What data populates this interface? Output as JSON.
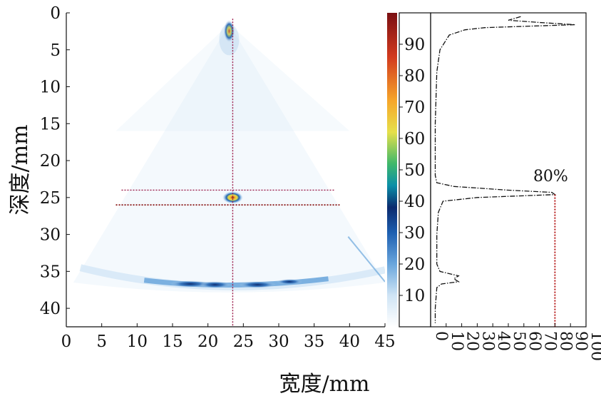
{
  "chart_data": [
    {
      "type": "heatmap",
      "xlabel": "宽度/mm",
      "ylabel": "深度/mm",
      "xlim": [
        0,
        45
      ],
      "ylim": [
        0,
        42.5
      ],
      "x_ticks": [
        "0",
        "5",
        "10",
        "15",
        "20",
        "25",
        "30",
        "35",
        "40",
        "45"
      ],
      "y_ticks": [
        "0",
        "5",
        "10",
        "15",
        "20",
        "25",
        "30",
        "35",
        "40"
      ],
      "colormap": [
        "#ffffff",
        "#cfe4f5",
        "#6aa6dc",
        "#1d5fb0",
        "#0b2a6e",
        "#0b8fa8",
        "#40b86a",
        "#e6e04a",
        "#f6a62a",
        "#d23a1e",
        "#7a0f12"
      ],
      "focal_point": {
        "x": 23.5,
        "y": 25,
        "intensity": 90
      },
      "array_apex": {
        "x": 23,
        "y": 1.5,
        "intensity": 65
      },
      "sector_arc_depth": 36.5,
      "marker_lines": {
        "vertical_x": 23.5,
        "horizontal_y": [
          24,
          26
        ]
      }
    },
    {
      "type": "colorbar",
      "min": 0,
      "max": 100,
      "ticks": [
        "10",
        "20",
        "30",
        "40",
        "50",
        "60",
        "70",
        "80",
        "90"
      ]
    },
    {
      "type": "line",
      "xlim": [
        0,
        100
      ],
      "x_ticks": [
        "0",
        "10",
        "20",
        "30",
        "40",
        "50",
        "60",
        "70",
        "80",
        "90",
        "100"
      ],
      "annotation": "80%",
      "annotation_value": 80,
      "profile": [
        {
          "d": 0.5,
          "v": 58
        },
        {
          "d": 1.0,
          "v": 50
        },
        {
          "d": 1.3,
          "v": 70
        },
        {
          "d": 1.6,
          "v": 93
        },
        {
          "d": 2.0,
          "v": 35
        },
        {
          "d": 2.3,
          "v": 22
        },
        {
          "d": 3.0,
          "v": 12
        },
        {
          "d": 5.0,
          "v": 6
        },
        {
          "d": 8.0,
          "v": 4
        },
        {
          "d": 15.0,
          "v": 3
        },
        {
          "d": 22.0,
          "v": 3
        },
        {
          "d": 23.0,
          "v": 4
        },
        {
          "d": 23.5,
          "v": 15
        },
        {
          "d": 24.0,
          "v": 50
        },
        {
          "d": 24.3,
          "v": 78
        },
        {
          "d": 24.6,
          "v": 80
        },
        {
          "d": 25.0,
          "v": 30
        },
        {
          "d": 25.5,
          "v": 8
        },
        {
          "d": 27.0,
          "v": 5
        },
        {
          "d": 30.0,
          "v": 4
        },
        {
          "d": 34.0,
          "v": 4
        },
        {
          "d": 35.0,
          "v": 6
        },
        {
          "d": 35.6,
          "v": 18
        },
        {
          "d": 36.0,
          "v": 15
        },
        {
          "d": 36.4,
          "v": 18
        },
        {
          "d": 36.7,
          "v": 7
        },
        {
          "d": 37.2,
          "v": 4
        },
        {
          "d": 40.0,
          "v": 3
        },
        {
          "d": 42.0,
          "v": 3
        }
      ]
    }
  ]
}
